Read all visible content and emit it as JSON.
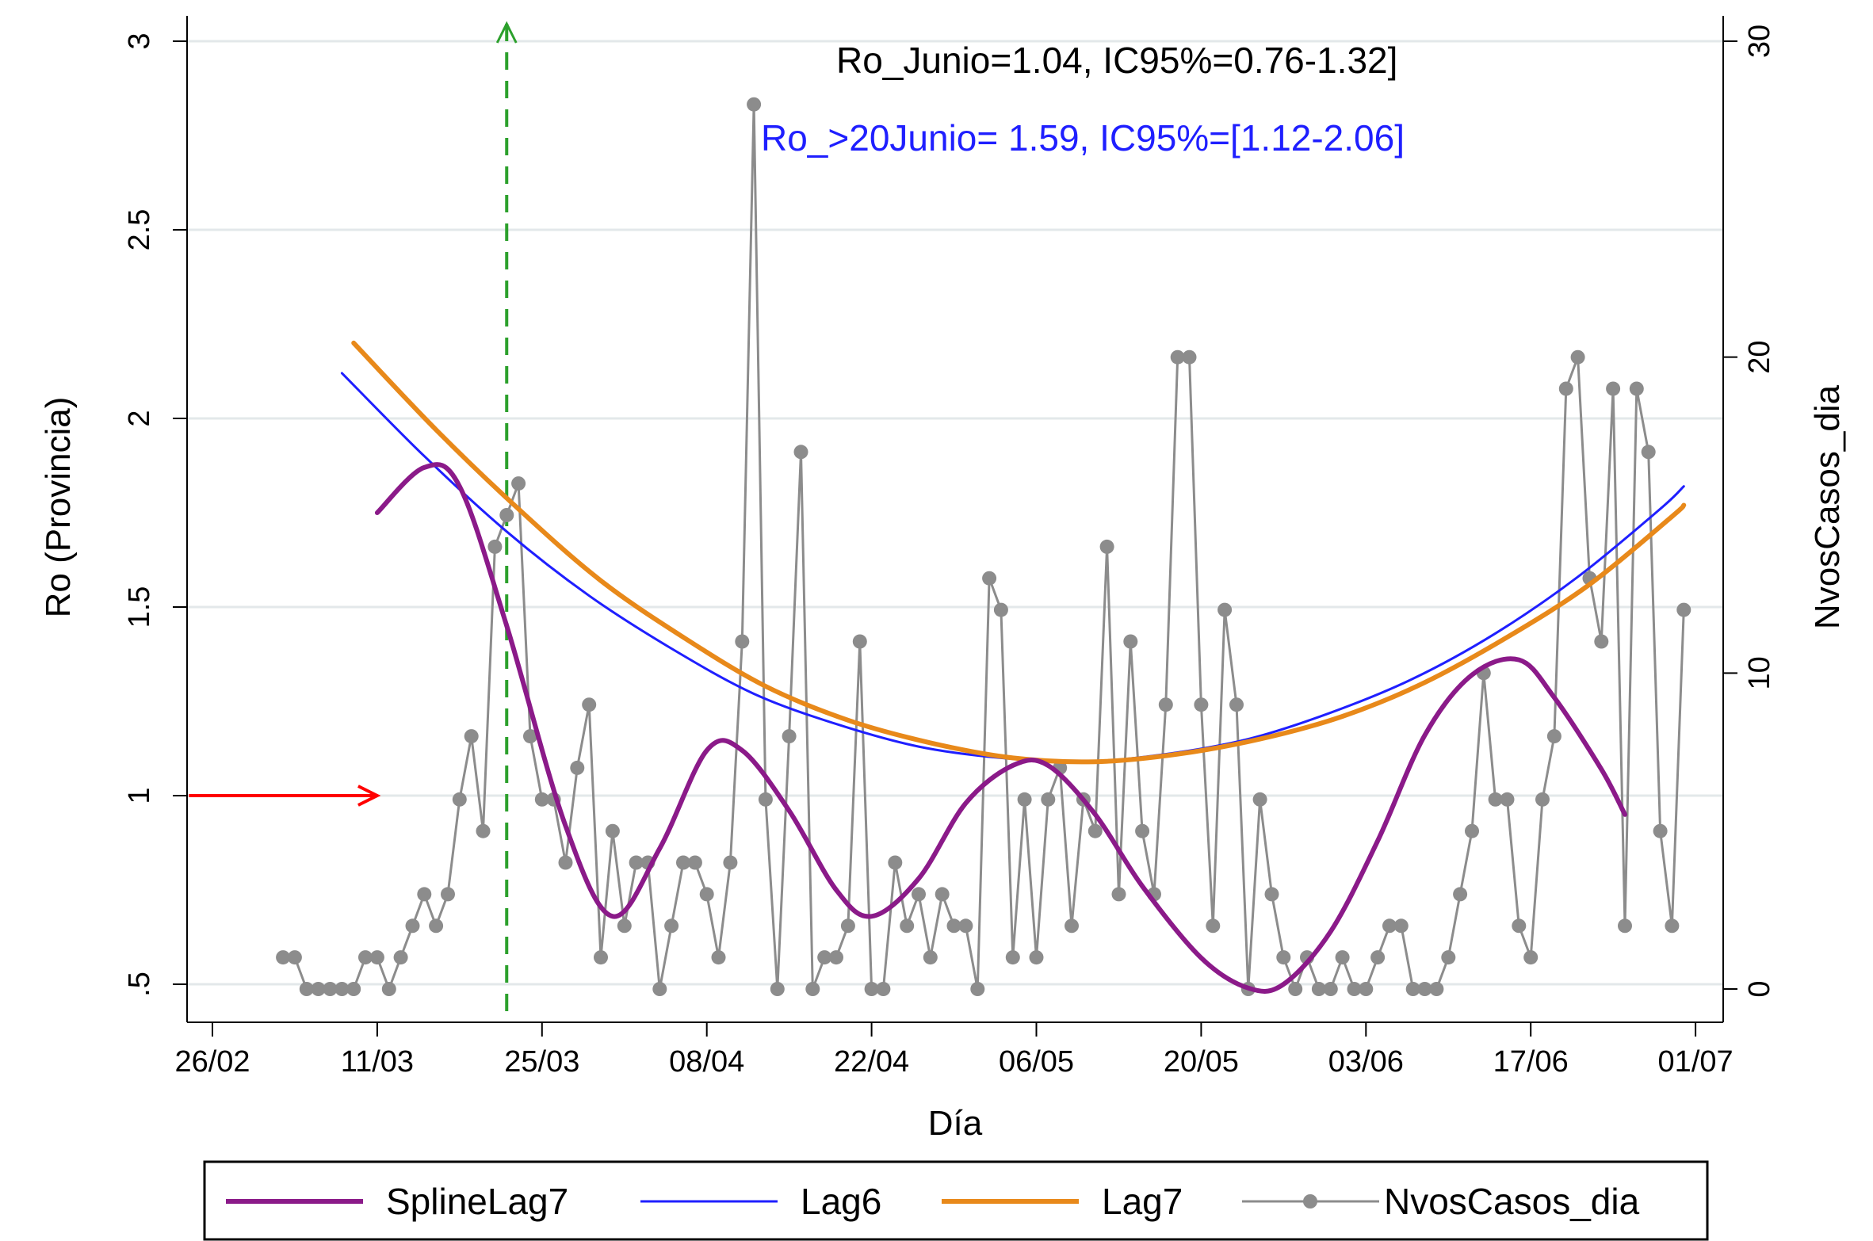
{
  "chart_data": {
    "type": "line",
    "title": "",
    "xlabel": "Día",
    "ylabel_left": "Ro (Provincia)",
    "ylabel_right": "NvosCasos_dia",
    "x_ticks": [
      "26/02",
      "11/03",
      "25/03",
      "08/04",
      "22/04",
      "06/05",
      "20/05",
      "03/06",
      "17/06",
      "01/07"
    ],
    "x_tick_dates": [
      "2020-02-26",
      "2020-03-11",
      "2020-03-25",
      "2020-04-08",
      "2020-04-22",
      "2020-05-06",
      "2020-05-20",
      "2020-06-03",
      "2020-06-17",
      "2020-07-01"
    ],
    "y_left_ticks": [
      ".5",
      "1",
      "1.5",
      "2",
      "2.5",
      "3"
    ],
    "y_left_range": [
      0.5,
      3.0
    ],
    "y_right_ticks": [
      "0",
      "10",
      "20",
      "30"
    ],
    "y_right_range": [
      0,
      30
    ],
    "grid": "horizontal",
    "legend_position": "bottom",
    "annotations": [
      {
        "text": "Ro_Junio=1.04, IC95%=0.76-1.32]",
        "color": "#000000"
      },
      {
        "text": "Ro_>20Junio= 1.59, IC95%=[1.12-2.06]",
        "color": "#1f1fff"
      }
    ],
    "reference_arrow": {
      "y": 1.0,
      "x_start": "2020-02-24",
      "x_end": "2020-03-11",
      "color": "#ff0000"
    },
    "vertical_marker": {
      "x": "2020-03-22",
      "color": "#2ca02c",
      "style": "dashed"
    },
    "series": [
      {
        "name": "SplineLag7",
        "axis": "left",
        "color": "#8b1a89",
        "x": [
          "2020-03-11",
          "2020-03-15",
          "2020-03-18",
          "2020-03-22",
          "2020-03-27",
          "2020-03-31",
          "2020-04-04",
          "2020-04-08",
          "2020-04-11",
          "2020-04-15",
          "2020-04-19",
          "2020-04-22",
          "2020-04-26",
          "2020-04-30",
          "2020-05-04",
          "2020-05-07",
          "2020-05-11",
          "2020-05-15",
          "2020-05-20",
          "2020-05-24",
          "2020-05-27",
          "2020-05-31",
          "2020-06-04",
          "2020-06-08",
          "2020-06-12",
          "2020-06-16",
          "2020-06-19",
          "2020-06-23",
          "2020-06-25"
        ],
        "values": [
          1.75,
          1.87,
          1.82,
          1.45,
          0.92,
          0.68,
          0.86,
          1.12,
          1.12,
          0.96,
          0.75,
          0.68,
          0.78,
          0.98,
          1.08,
          1.08,
          0.95,
          0.76,
          0.57,
          0.49,
          0.5,
          0.64,
          0.88,
          1.16,
          1.32,
          1.36,
          1.26,
          1.07,
          0.95
        ]
      },
      {
        "name": "Lag6",
        "axis": "left",
        "color": "#1f1fff",
        "x": [
          "2020-03-08",
          "2020-03-15",
          "2020-03-22",
          "2020-03-29",
          "2020-04-05",
          "2020-04-12",
          "2020-04-19",
          "2020-04-26",
          "2020-05-03",
          "2020-05-10",
          "2020-05-17",
          "2020-05-24",
          "2020-05-31",
          "2020-06-07",
          "2020-06-14",
          "2020-06-21",
          "2020-06-28",
          "2020-06-30"
        ],
        "values": [
          2.12,
          1.9,
          1.7,
          1.53,
          1.39,
          1.27,
          1.19,
          1.13,
          1.1,
          1.09,
          1.11,
          1.15,
          1.22,
          1.31,
          1.43,
          1.58,
          1.76,
          1.82
        ]
      },
      {
        "name": "Lag7",
        "axis": "left",
        "color": "#e8891a",
        "x": [
          "2020-03-09",
          "2020-03-16",
          "2020-03-23",
          "2020-03-30",
          "2020-04-06",
          "2020-04-13",
          "2020-04-20",
          "2020-04-27",
          "2020-05-04",
          "2020-05-11",
          "2020-05-18",
          "2020-05-25",
          "2020-06-01",
          "2020-06-08",
          "2020-06-15",
          "2020-06-22",
          "2020-06-29",
          "2020-06-30"
        ],
        "values": [
          2.2,
          1.97,
          1.76,
          1.57,
          1.42,
          1.29,
          1.2,
          1.14,
          1.1,
          1.09,
          1.11,
          1.15,
          1.21,
          1.3,
          1.42,
          1.56,
          1.74,
          1.77
        ]
      },
      {
        "name": "NvosCasos_dia",
        "axis": "right",
        "color": "#8c8c8c",
        "marker": "circle",
        "x_start": "2020-03-03",
        "values": [
          1,
          1,
          0,
          0,
          0,
          0,
          0,
          1,
          1,
          0,
          1,
          2,
          3,
          2,
          3,
          6,
          8,
          5,
          14,
          15,
          16,
          8,
          6,
          6,
          4,
          7,
          9,
          1,
          5,
          2,
          4,
          4,
          0,
          2,
          4,
          4,
          3,
          1,
          4,
          11,
          28,
          6,
          0,
          8,
          17,
          0,
          1,
          1,
          2,
          11,
          0,
          0,
          4,
          2,
          3,
          1,
          3,
          2,
          2,
          0,
          13,
          12,
          1,
          6,
          1,
          6,
          7,
          2,
          6,
          5,
          14,
          3,
          11,
          5,
          3,
          9,
          20,
          20,
          9,
          2,
          12,
          9,
          0,
          6,
          3,
          1,
          0,
          1,
          0,
          0,
          1,
          0,
          0,
          1,
          2,
          2,
          0,
          0,
          0,
          1,
          3,
          5,
          10,
          6,
          6,
          2,
          1,
          6,
          8,
          19,
          20,
          13,
          11,
          19,
          2,
          19,
          17,
          5,
          2,
          12
        ]
      }
    ]
  }
}
